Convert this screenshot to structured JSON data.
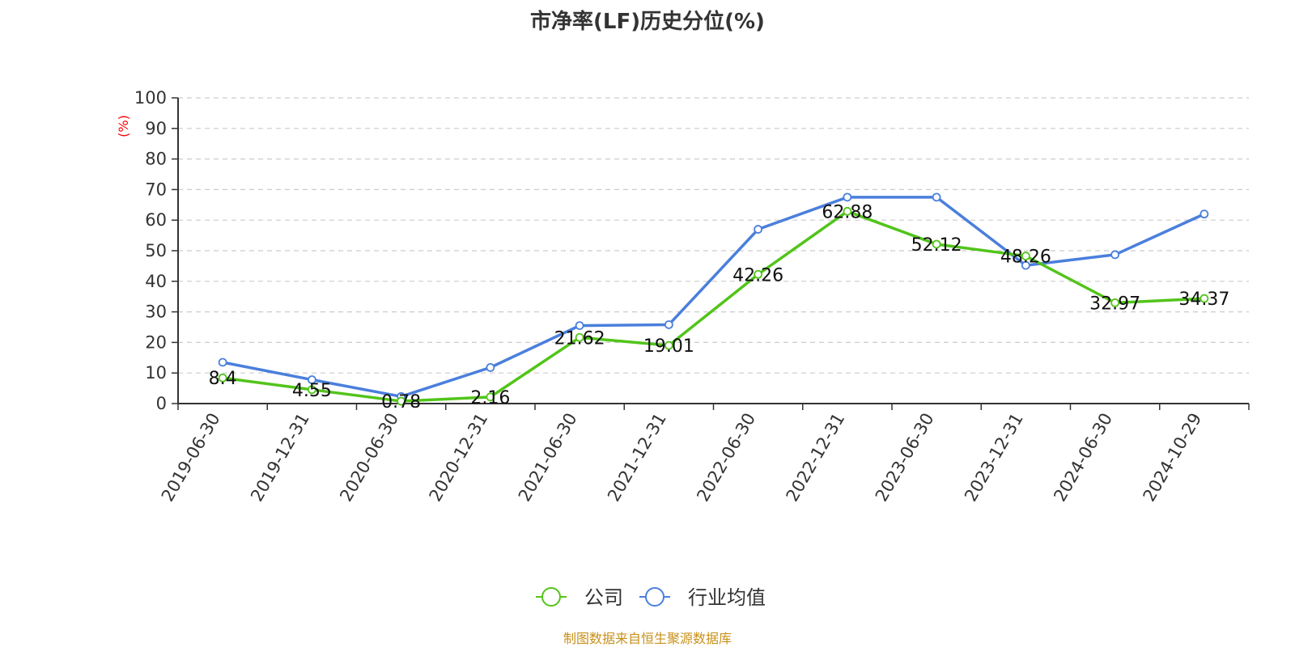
{
  "page": {
    "title": "市净率(LF)历史分位(%)",
    "source": "制图数据来自恒生聚源数据库"
  },
  "colors": {
    "company": "#52c41a",
    "industry": "#4a7fdc",
    "ylabel": "#ff0000",
    "axis": "#333333",
    "grid": "#cccccc",
    "source": "#c8901a"
  },
  "chart_data": {
    "type": "line",
    "title": "市净率(LF)历史分位(%)",
    "xlabel": "",
    "ylabel": "(%)",
    "ylim": [
      0,
      100
    ],
    "yticks": [
      0,
      10,
      20,
      30,
      40,
      50,
      60,
      70,
      80,
      90,
      100
    ],
    "grid": true,
    "legend_position": "bottom-center",
    "categories": [
      "2019-06-30",
      "2019-12-31",
      "2020-06-30",
      "2020-12-31",
      "2021-06-30",
      "2021-12-31",
      "2022-06-30",
      "2022-12-31",
      "2023-06-30",
      "2023-12-31",
      "2024-06-30",
      "2024-10-29"
    ],
    "series": [
      {
        "name": "公司",
        "color": "#52c41a",
        "values": [
          8.4,
          4.55,
          0.78,
          2.16,
          21.62,
          19.01,
          42.26,
          62.88,
          52.12,
          48.26,
          32.97,
          34.37
        ],
        "labels": [
          "8.4",
          "4.55",
          "0.78",
          "2.16",
          "21.62",
          "19.01",
          "42.26",
          "62.88",
          "52.12",
          "48.26",
          "32.97",
          "34.37"
        ]
      },
      {
        "name": "行业均值",
        "color": "#4a7fdc",
        "values": [
          13.5,
          7.8,
          2.3,
          11.8,
          25.5,
          25.8,
          57.0,
          67.5,
          67.5,
          45.2,
          48.7,
          62.0
        ]
      }
    ]
  }
}
